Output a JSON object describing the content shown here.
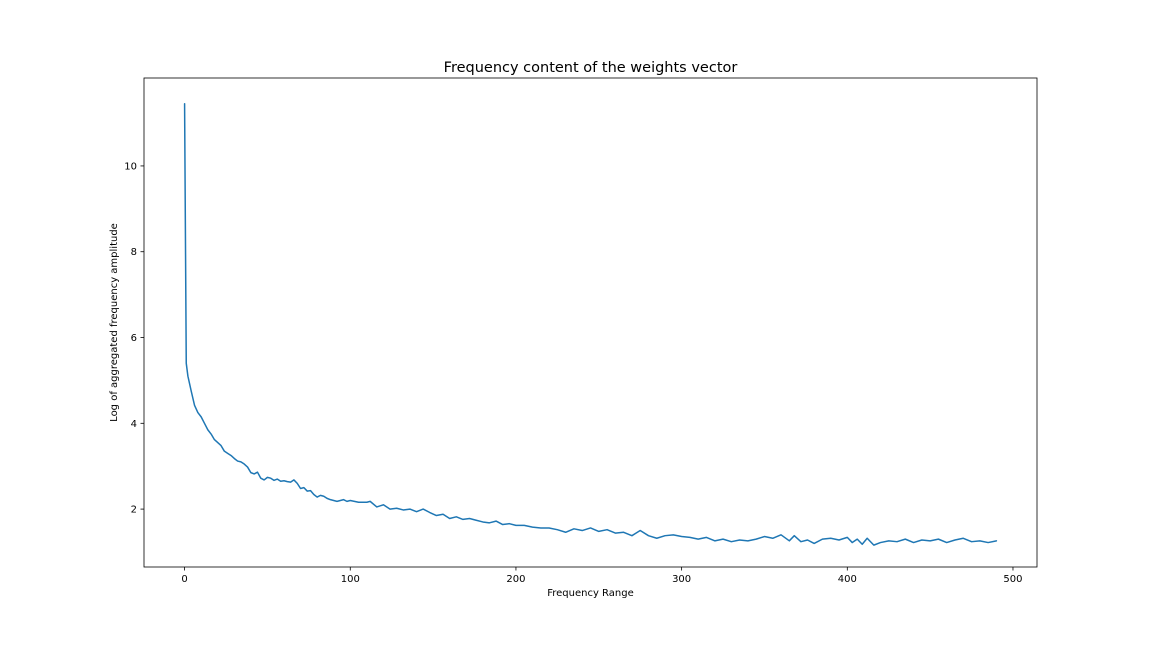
{
  "chart_data": {
    "type": "line",
    "title": "Frequency content of the weights vector",
    "xlabel": "Frequency Range",
    "ylabel": "Log of aggregated frequency amplitude",
    "xlim": [
      -24.5,
      514.5
    ],
    "ylim": [
      0.65,
      12.05
    ],
    "xticks": [
      0,
      100,
      200,
      300,
      400,
      500
    ],
    "yticks": [
      2,
      4,
      6,
      8,
      10
    ],
    "grid": false,
    "legend": "none",
    "colors": {
      "series": "#1f77b4",
      "axes": "#000000",
      "background": "#ffffff"
    },
    "series": [
      {
        "x": [
          0,
          1,
          2,
          4,
          6,
          8,
          10,
          12,
          14,
          16,
          18,
          20,
          22,
          24,
          26,
          28,
          30,
          32,
          34,
          36,
          38,
          40,
          42,
          44,
          46,
          48,
          50,
          52,
          54,
          56,
          58,
          60,
          62,
          64,
          66,
          68,
          70,
          72,
          74,
          76,
          78,
          80,
          82,
          84,
          86,
          88,
          90,
          92,
          94,
          96,
          98,
          100,
          105,
          110,
          112,
          116,
          120,
          124,
          128,
          132,
          136,
          140,
          144,
          148,
          152,
          156,
          160,
          164,
          168,
          172,
          176,
          180,
          184,
          188,
          192,
          196,
          200,
          205,
          210,
          215,
          220,
          225,
          230,
          235,
          240,
          245,
          250,
          255,
          260,
          265,
          270,
          275,
          280,
          285,
          290,
          295,
          300,
          305,
          310,
          315,
          320,
          325,
          330,
          335,
          340,
          345,
          350,
          355,
          360,
          365,
          368,
          372,
          376,
          380,
          385,
          390,
          395,
          400,
          403,
          406,
          409,
          412,
          416,
          420,
          425,
          430,
          435,
          440,
          445,
          450,
          455,
          460,
          465,
          470,
          475,
          480,
          485,
          490
        ],
        "values": [
          11.45,
          5.4,
          5.1,
          4.75,
          4.42,
          4.25,
          4.15,
          4.0,
          3.85,
          3.75,
          3.62,
          3.55,
          3.48,
          3.35,
          3.3,
          3.25,
          3.18,
          3.12,
          3.1,
          3.05,
          2.98,
          2.85,
          2.82,
          2.86,
          2.72,
          2.68,
          2.74,
          2.72,
          2.67,
          2.7,
          2.65,
          2.66,
          2.64,
          2.63,
          2.68,
          2.6,
          2.48,
          2.5,
          2.42,
          2.43,
          2.34,
          2.28,
          2.32,
          2.3,
          2.25,
          2.22,
          2.2,
          2.18,
          2.2,
          2.22,
          2.18,
          2.2,
          2.16,
          2.16,
          2.18,
          2.05,
          2.1,
          2.0,
          2.02,
          1.98,
          2.0,
          1.94,
          2.0,
          1.92,
          1.85,
          1.88,
          1.78,
          1.82,
          1.76,
          1.78,
          1.74,
          1.7,
          1.68,
          1.72,
          1.64,
          1.66,
          1.62,
          1.62,
          1.58,
          1.56,
          1.56,
          1.52,
          1.46,
          1.54,
          1.5,
          1.56,
          1.48,
          1.52,
          1.44,
          1.46,
          1.38,
          1.5,
          1.38,
          1.32,
          1.38,
          1.4,
          1.36,
          1.34,
          1.3,
          1.34,
          1.26,
          1.3,
          1.24,
          1.28,
          1.26,
          1.3,
          1.36,
          1.32,
          1.4,
          1.26,
          1.38,
          1.24,
          1.28,
          1.2,
          1.3,
          1.32,
          1.28,
          1.34,
          1.22,
          1.3,
          1.18,
          1.32,
          1.16,
          1.22,
          1.26,
          1.24,
          1.3,
          1.22,
          1.28,
          1.26,
          1.3,
          1.22,
          1.28,
          1.32,
          1.24,
          1.26,
          1.22,
          1.26
        ]
      }
    ]
  }
}
